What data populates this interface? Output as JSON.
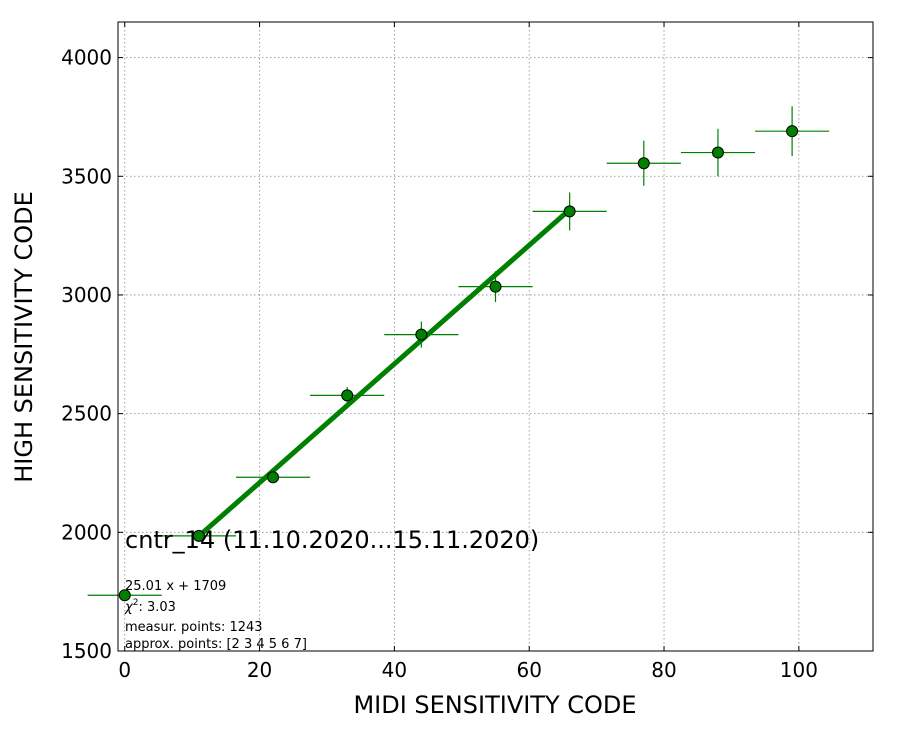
{
  "chart_data": {
    "type": "scatter",
    "xlabel": "MIDI SENSITIVITY CODE",
    "ylabel": "HIGH SENSITIVITY CODE",
    "xlim": [
      -1,
      111
    ],
    "ylim": [
      1500,
      4150
    ],
    "xticks": [
      0,
      20,
      40,
      60,
      80,
      100
    ],
    "yticks": [
      1500,
      2000,
      2500,
      3000,
      3500,
      4000
    ],
    "grid": true,
    "color": "#008000",
    "marker_edge_color": "#000000",
    "points": [
      {
        "x": 0,
        "y": 1735,
        "xerr": 5.5,
        "yerr": 0
      },
      {
        "x": 11,
        "y": 1985,
        "xerr": 5.5,
        "yerr": 0
      },
      {
        "x": 22,
        "y": 2232,
        "xerr": 5.5,
        "yerr": 0
      },
      {
        "x": 33,
        "y": 2577,
        "xerr": 5.5,
        "yerr": 35
      },
      {
        "x": 44,
        "y": 2833,
        "xerr": 5.5,
        "yerr": 55
      },
      {
        "x": 55,
        "y": 3035,
        "xerr": 5.5,
        "yerr": 65
      },
      {
        "x": 66,
        "y": 3352,
        "xerr": 5.5,
        "yerr": 80
      },
      {
        "x": 77,
        "y": 3555,
        "xerr": 5.5,
        "yerr": 95
      },
      {
        "x": 88,
        "y": 3600,
        "xerr": 5.5,
        "yerr": 100
      },
      {
        "x": 99,
        "y": 3690,
        "xerr": 5.5,
        "yerr": 105
      }
    ],
    "fit": {
      "slope": 25.01,
      "intercept": 1709,
      "x_range": [
        11,
        66
      ]
    },
    "annotations": {
      "title": "cntr_14 (11.10.2020...15.11.2020)",
      "equation": "25.01 x + 1709",
      "chi_label": "χ",
      "chi_sup": "2",
      "chi_value": ": 3.03",
      "measured": "measur. points: 1243",
      "approx": "approx. points: [2 3 4 5 6 7]"
    }
  }
}
